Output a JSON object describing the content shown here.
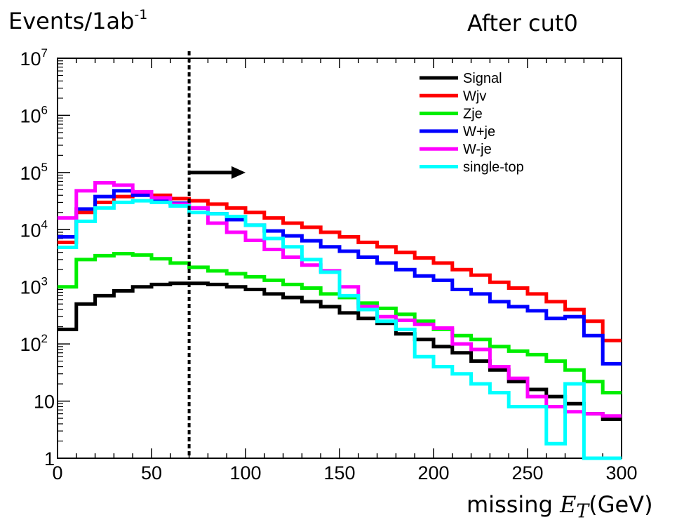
{
  "annotations": {
    "ylabel_main": "Events/1ab",
    "ylabel_sup": "-1",
    "cut_label": "After cut0",
    "xlabel_main": "missing ",
    "xlabel_var": "E",
    "xlabel_sub": "T",
    "xlabel_unit": "(GeV)"
  },
  "chart_data": {
    "type": "line",
    "step": true,
    "bin_edges": [
      0,
      10,
      20,
      30,
      40,
      50,
      60,
      70,
      80,
      90,
      100,
      110,
      120,
      130,
      140,
      150,
      160,
      170,
      180,
      190,
      200,
      210,
      220,
      230,
      240,
      250,
      260,
      270,
      280,
      290,
      300
    ],
    "xlim": [
      0,
      300
    ],
    "ylim": [
      1,
      10000000
    ],
    "y_log": true,
    "x_ticks": [
      0,
      50,
      100,
      150,
      200,
      250,
      300
    ],
    "x_tick_labels": [
      "0",
      "50",
      "100",
      "150",
      "200",
      "250",
      "300"
    ],
    "y_ticks": [
      1,
      10,
      100,
      1000,
      10000,
      100000,
      1000000,
      10000000
    ],
    "y_tick_labels": [
      {
        "base": "1",
        "exp": ""
      },
      {
        "base": "10",
        "exp": ""
      },
      {
        "base": "10",
        "exp": "2"
      },
      {
        "base": "10",
        "exp": "3"
      },
      {
        "base": "10",
        "exp": "4"
      },
      {
        "base": "10",
        "exp": "5"
      },
      {
        "base": "10",
        "exp": "6"
      },
      {
        "base": "10",
        "exp": "7"
      }
    ],
    "cut_x": 70,
    "arrow": {
      "x_from": 70,
      "x_to": 100,
      "y": 100000
    },
    "legend_position": "top-right",
    "series": [
      {
        "name": "Signal",
        "color": "#000000",
        "values": [
          180,
          500,
          700,
          850,
          1000,
          1100,
          1150,
          1150,
          1100,
          1000,
          900,
          750,
          650,
          550,
          450,
          350,
          280,
          230,
          150,
          120,
          90,
          70,
          50,
          35,
          22,
          16,
          12,
          9,
          6,
          4.8
        ]
      },
      {
        "name": "Wjv",
        "color": "#ff0000",
        "values": [
          6000,
          20000,
          30000,
          38000,
          42000,
          40000,
          35000,
          32000,
          28000,
          24000,
          20000,
          16000,
          13000,
          11000,
          9000,
          7500,
          6000,
          5000,
          4000,
          3200,
          2600,
          2000,
          1600,
          1200,
          950,
          750,
          550,
          400,
          250,
          115
        ]
      },
      {
        "name": "Zje",
        "color": "#00ee00",
        "values": [
          1000,
          3000,
          3500,
          3800,
          3600,
          3100,
          2600,
          2200,
          1900,
          1700,
          1500,
          1300,
          1100,
          950,
          750,
          650,
          520,
          420,
          330,
          250,
          180,
          140,
          120,
          90,
          75,
          65,
          50,
          35,
          22,
          14
        ]
      },
      {
        "name": "W+je",
        "color": "#0000ff",
        "values": [
          7500,
          23000,
          38000,
          48000,
          40000,
          34000,
          29000,
          24000,
          19000,
          15000,
          12000,
          9500,
          7800,
          6400,
          5000,
          4200,
          3300,
          2600,
          2000,
          1550,
          1300,
          900,
          750,
          550,
          450,
          380,
          280,
          300,
          140,
          45
        ]
      },
      {
        "name": "W-je",
        "color": "#ff00ff",
        "values": [
          16000,
          48000,
          66000,
          60000,
          46000,
          36000,
          28000,
          24000,
          13000,
          9000,
          6500,
          4500,
          3300,
          2400,
          1900,
          1000,
          450,
          300,
          260,
          220,
          190,
          100,
          80,
          40,
          25,
          12,
          8,
          6.5,
          6,
          5.5
        ]
      },
      {
        "name": "single-top",
        "color": "#00ffff",
        "values": [
          4900,
          14000,
          24000,
          30000,
          32000,
          30000,
          26000,
          20000,
          19000,
          17000,
          12000,
          7000,
          5000,
          3000,
          1800,
          700,
          400,
          250,
          180,
          60,
          40,
          30,
          20,
          14,
          8,
          8,
          1.8,
          20,
          1,
          1
        ]
      }
    ]
  }
}
